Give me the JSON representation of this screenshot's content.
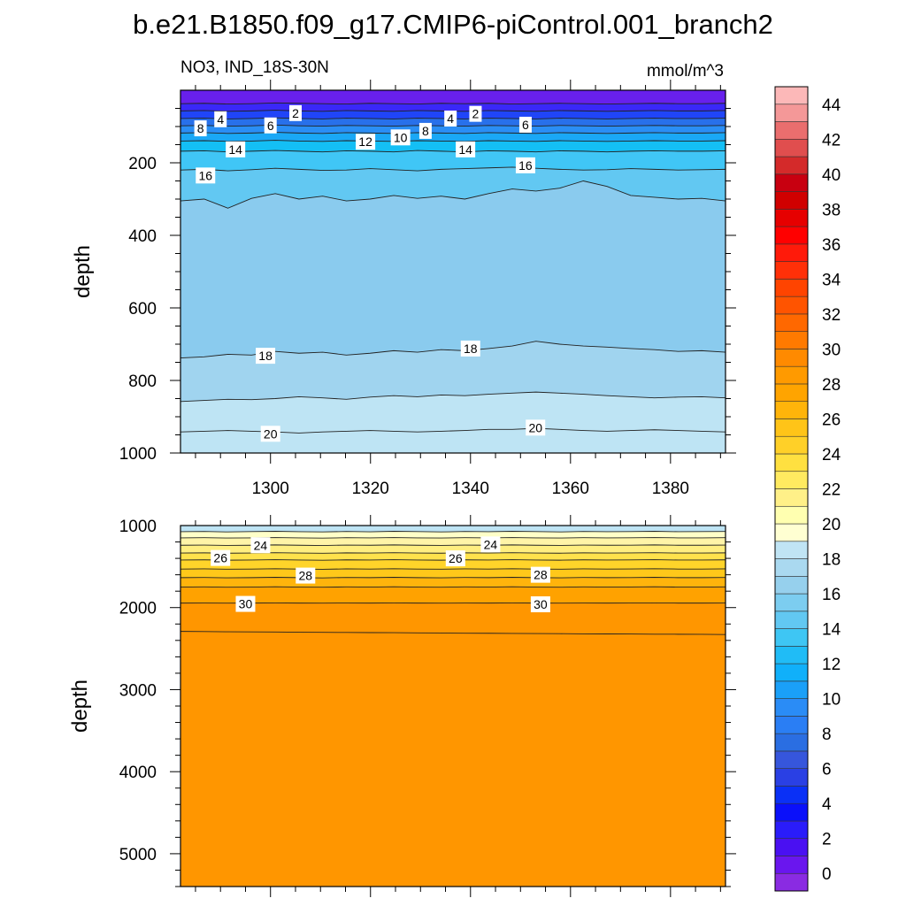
{
  "title": "b.e21.B1850.f09_g17.CMIP6-piControl.001_branch2",
  "left_label": "NO3, IND_18S-30N",
  "units_label": "mmol/m^3",
  "chart_data": [
    {
      "type": "heatmap",
      "panel": "upper",
      "ylabel": "depth",
      "xlim": [
        1282,
        1391
      ],
      "ylim": [
        1000,
        0
      ],
      "x_ticks": [
        1300,
        1320,
        1340,
        1360,
        1380
      ],
      "y_ticks": [
        200,
        400,
        600,
        800,
        1000
      ],
      "band_colors": [
        "#6820ec",
        "#3a28f8",
        "#2045f8",
        "#2870ea",
        "#2a8ef5",
        "#1aa8f6",
        "#14bff5",
        "#40c6f6",
        "#62c8f2",
        "#8acbee",
        "#a0d4ef",
        "#bee4f4"
      ],
      "contours": [
        {
          "level": 2,
          "y": [
            37,
            36,
            38,
            37,
            35,
            36,
            37,
            38,
            36,
            37,
            38,
            36,
            37,
            36,
            38,
            37,
            36,
            37,
            38,
            37,
            36,
            37,
            37,
            36
          ]
        },
        {
          "level": 4,
          "y": [
            57,
            56,
            58,
            57,
            55,
            57,
            58,
            56,
            57,
            58,
            56,
            57,
            58,
            56,
            57,
            58,
            56,
            57,
            58,
            57,
            56,
            57,
            57,
            56
          ]
        },
        {
          "level": 6,
          "y": [
            78,
            77,
            79,
            78,
            76,
            78,
            79,
            77,
            78,
            79,
            77,
            78,
            79,
            77,
            78,
            79,
            77,
            78,
            79,
            78,
            77,
            78,
            78,
            77
          ]
        },
        {
          "level": 8,
          "y": [
            98,
            97,
            99,
            98,
            96,
            98,
            99,
            97,
            98,
            99,
            97,
            98,
            99,
            97,
            98,
            99,
            97,
            98,
            99,
            98,
            97,
            98,
            98,
            97
          ]
        },
        {
          "level": 10,
          "y": [
            118,
            117,
            119,
            118,
            116,
            118,
            119,
            117,
            118,
            119,
            117,
            118,
            119,
            117,
            118,
            119,
            117,
            118,
            119,
            118,
            117,
            118,
            118,
            117
          ]
        },
        {
          "level": 12,
          "y": [
            140,
            139,
            141,
            140,
            138,
            140,
            141,
            139,
            140,
            141,
            139,
            140,
            141,
            139,
            140,
            141,
            139,
            140,
            141,
            140,
            139,
            140,
            140,
            139
          ]
        },
        {
          "level": 14,
          "y": [
            168,
            167,
            170,
            168,
            166,
            168,
            170,
            167,
            168,
            170,
            166,
            168,
            170,
            167,
            168,
            170,
            167,
            168,
            170,
            168,
            167,
            168,
            168,
            167
          ]
        },
        {
          "level": 16,
          "y": [
            220,
            218,
            222,
            219,
            215,
            218,
            221,
            220,
            216,
            219,
            222,
            218,
            216,
            214,
            212,
            215,
            218,
            220,
            219,
            216,
            218,
            220,
            219,
            218
          ]
        },
        {
          "level": 17,
          "y": [
            305,
            300,
            325,
            298,
            285,
            300,
            292,
            305,
            300,
            290,
            298,
            292,
            300,
            285,
            272,
            278,
            270,
            250,
            265,
            290,
            295,
            300,
            298,
            305
          ]
        },
        {
          "level": 18,
          "y": [
            738,
            735,
            728,
            730,
            720,
            725,
            722,
            730,
            725,
            718,
            722,
            715,
            718,
            712,
            705,
            692,
            700,
            705,
            708,
            712,
            715,
            720,
            718,
            722
          ]
        },
        {
          "level": 19,
          "y": [
            858,
            855,
            852,
            853,
            850,
            845,
            848,
            852,
            846,
            842,
            845,
            840,
            842,
            838,
            835,
            832,
            835,
            838,
            842,
            845,
            848,
            846,
            845,
            848
          ]
        },
        {
          "level": 20,
          "y": [
            942,
            940,
            938,
            940,
            942,
            945,
            942,
            940,
            938,
            940,
            942,
            940,
            938,
            935,
            935,
            932,
            935,
            938,
            940,
            938,
            936,
            938,
            940,
            942
          ]
        }
      ],
      "contour_labels": [
        {
          "text": "2",
          "x": 1305,
          "y": 63
        },
        {
          "text": "4",
          "x": 1290,
          "y": 80
        },
        {
          "text": "6",
          "x": 1300,
          "y": 97
        },
        {
          "text": "8",
          "x": 1286,
          "y": 105
        },
        {
          "text": "14",
          "x": 1293,
          "y": 163
        },
        {
          "text": "16",
          "x": 1287,
          "y": 235
        },
        {
          "text": "12",
          "x": 1319,
          "y": 142
        },
        {
          "text": "10",
          "x": 1326,
          "y": 130
        },
        {
          "text": "8",
          "x": 1331,
          "y": 112
        },
        {
          "text": "4",
          "x": 1336,
          "y": 78
        },
        {
          "text": "2",
          "x": 1341,
          "y": 65
        },
        {
          "text": "14",
          "x": 1339,
          "y": 163
        },
        {
          "text": "6",
          "x": 1351,
          "y": 95
        },
        {
          "text": "16",
          "x": 1351,
          "y": 207
        },
        {
          "text": "18",
          "x": 1299,
          "y": 732
        },
        {
          "text": "18",
          "x": 1340,
          "y": 712
        },
        {
          "text": "20",
          "x": 1300,
          "y": 947
        },
        {
          "text": "20",
          "x": 1353,
          "y": 930
        }
      ]
    },
    {
      "type": "heatmap",
      "panel": "lower",
      "ylabel": "depth",
      "xlim": [
        1282,
        1391
      ],
      "ylim": [
        5400,
        1000
      ],
      "y_ticks": [
        1000,
        2000,
        3000,
        4000,
        5000
      ],
      "band_colors": [
        "#bee4f4",
        "#ffffc8",
        "#fff4a8",
        "#ffee80",
        "#ffe24c",
        "#ffd42a",
        "#ffc81a",
        "#ffb40c",
        "#ffa200",
        "#ff9600"
      ],
      "contours": [
        {
          "level": 22,
          "y": [
            1075,
            1072,
            1078,
            1074,
            1070,
            1075,
            1078,
            1072,
            1076,
            1070,
            1074,
            1078,
            1072,
            1075,
            1070,
            1074,
            1078,
            1072,
            1075,
            1073,
            1070,
            1075,
            1074,
            1072
          ]
        },
        {
          "level": 23,
          "y": [
            1150,
            1148,
            1152,
            1150,
            1146,
            1150,
            1153,
            1148,
            1150,
            1146,
            1150,
            1152,
            1148,
            1150,
            1146,
            1150,
            1152,
            1148,
            1150,
            1149,
            1146,
            1150,
            1150,
            1148
          ]
        },
        {
          "level": 24,
          "y": [
            1240,
            1238,
            1242,
            1240,
            1236,
            1240,
            1243,
            1238,
            1240,
            1236,
            1240,
            1242,
            1238,
            1240,
            1236,
            1240,
            1242,
            1238,
            1240,
            1239,
            1236,
            1240,
            1240,
            1238
          ]
        },
        {
          "level": 25,
          "y": [
            1335,
            1333,
            1337,
            1335,
            1331,
            1335,
            1338,
            1333,
            1335,
            1331,
            1335,
            1337,
            1333,
            1335,
            1331,
            1335,
            1337,
            1333,
            1335,
            1334,
            1331,
            1335,
            1335,
            1333
          ]
        },
        {
          "level": 26,
          "y": [
            1420,
            1418,
            1422,
            1420,
            1416,
            1420,
            1423,
            1418,
            1420,
            1416,
            1420,
            1422,
            1418,
            1420,
            1416,
            1420,
            1422,
            1418,
            1420,
            1419,
            1416,
            1420,
            1420,
            1418
          ]
        },
        {
          "level": 27,
          "y": [
            1530,
            1528,
            1532,
            1530,
            1526,
            1530,
            1533,
            1528,
            1530,
            1526,
            1530,
            1532,
            1528,
            1530,
            1526,
            1530,
            1532,
            1528,
            1530,
            1529,
            1526,
            1530,
            1530,
            1528
          ]
        },
        {
          "level": 28,
          "y": [
            1635,
            1633,
            1637,
            1635,
            1631,
            1635,
            1638,
            1633,
            1635,
            1631,
            1635,
            1637,
            1633,
            1635,
            1631,
            1635,
            1637,
            1633,
            1635,
            1634,
            1631,
            1635,
            1635,
            1633
          ]
        },
        {
          "level": 29,
          "y": [
            1750,
            1748,
            1752,
            1750,
            1746,
            1750,
            1752,
            1748,
            1750,
            1746,
            1750,
            1752,
            1748,
            1750,
            1746,
            1750,
            1752,
            1748,
            1750,
            1749,
            1746,
            1750,
            1750,
            1748
          ]
        },
        {
          "level": 30,
          "y": [
            1945,
            1944,
            1946,
            1945,
            1943,
            1945,
            1946,
            1944,
            1945,
            1943,
            1945,
            1946,
            1944,
            1945,
            1943,
            1945,
            1946,
            1944,
            1945,
            1944,
            1943,
            1945,
            1945,
            1944
          ]
        },
        {
          "level": 31,
          "y": [
            2290,
            2292,
            2295,
            2296,
            2298,
            2300,
            2302,
            2303,
            2305,
            2306,
            2308,
            2310,
            2312,
            2313,
            2315,
            2316,
            2318,
            2320,
            2321,
            2322,
            2324,
            2325,
            2326,
            2328
          ]
        }
      ],
      "contour_labels": [
        {
          "text": "24",
          "x": 1298,
          "y": 1240
        },
        {
          "text": "26",
          "x": 1290,
          "y": 1395
        },
        {
          "text": "28",
          "x": 1307,
          "y": 1610
        },
        {
          "text": "30",
          "x": 1295,
          "y": 1955
        },
        {
          "text": "24",
          "x": 1344,
          "y": 1230
        },
        {
          "text": "26",
          "x": 1337,
          "y": 1400
        },
        {
          "text": "28",
          "x": 1354,
          "y": 1600
        },
        {
          "text": "30",
          "x": 1354,
          "y": 1960
        }
      ]
    }
  ],
  "colorbar": {
    "labels": [
      "0",
      "2",
      "4",
      "6",
      "8",
      "10",
      "12",
      "14",
      "16",
      "18",
      "20",
      "22",
      "24",
      "26",
      "28",
      "30",
      "32",
      "34",
      "36",
      "38",
      "40",
      "42",
      "44"
    ],
    "colors": [
      "#8a2be2",
      "#6a16ee",
      "#4a10f2",
      "#2a1cfa",
      "#0a10fa",
      "#0a30f6",
      "#2a40e4",
      "#3656dc",
      "#2a6ee2",
      "#2a7ef4",
      "#2a8cf6",
      "#1aa0f8",
      "#10b0fa",
      "#20bcf6",
      "#3ec6f4",
      "#62c8f2",
      "#7ccdf0",
      "#96d0ed",
      "#aad9f0",
      "#c0e4f4",
      "#ffffd2",
      "#ffffb0",
      "#fff088",
      "#ffea60",
      "#ffe040",
      "#ffd028",
      "#ffc418",
      "#ffb40a",
      "#ffa400",
      "#ff9a00",
      "#ff8a00",
      "#ff7a00",
      "#ff6800",
      "#ff5400",
      "#ff4400",
      "#ff3008",
      "#ff1a0a",
      "#ff0000",
      "#e60000",
      "#d00000",
      "#c80010",
      "#d42a2a",
      "#e04e4e",
      "#ea6e6e",
      "#f49898",
      "#fcb8b8"
    ]
  }
}
